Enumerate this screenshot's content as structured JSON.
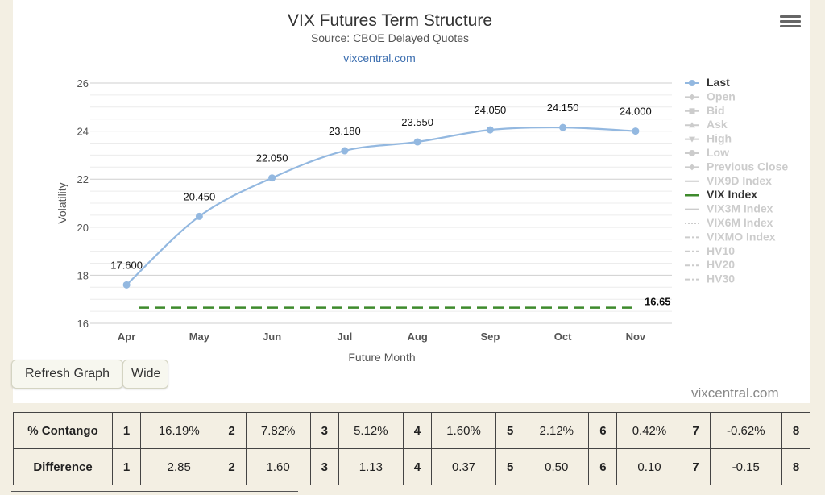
{
  "menu": {
    "icon": "hamburger-menu-icon"
  },
  "chart_data": {
    "type": "line",
    "title": "VIX Futures Term Structure",
    "subtitle": "Source: CBOE Delayed Quotes",
    "credit": "vixcentral.com",
    "xlabel": "Future Month",
    "ylabel": "Volatility",
    "categories": [
      "Apr",
      "May",
      "Jun",
      "Jul",
      "Aug",
      "Sep",
      "Oct",
      "Nov"
    ],
    "ylim": [
      16,
      26
    ],
    "yticks": [
      16,
      18,
      20,
      22,
      24,
      26
    ],
    "grid": true,
    "legend_position": "right",
    "series": [
      {
        "name": "Last",
        "values": [
          17.6,
          20.45,
          22.05,
          23.18,
          23.55,
          24.05,
          24.15,
          24.0
        ],
        "value_labels": [
          "17.600",
          "20.450",
          "22.050",
          "23.180",
          "23.550",
          "24.050",
          "24.150",
          "24.000"
        ],
        "color": "#93b8e0"
      },
      {
        "name": "VIX Index",
        "value": 16.65,
        "label": "16.65",
        "color": "#3e8a2c",
        "style": "dashed"
      }
    ],
    "legend": [
      {
        "name": "Last",
        "active": true,
        "symbol": "circle-line"
      },
      {
        "name": "Open",
        "active": false,
        "symbol": "diamond-line"
      },
      {
        "name": "Bid",
        "active": false,
        "symbol": "square-line"
      },
      {
        "name": "Ask",
        "active": false,
        "symbol": "triangle-line"
      },
      {
        "name": "High",
        "active": false,
        "symbol": "triangle-down-line"
      },
      {
        "name": "Low",
        "active": false,
        "symbol": "circle-line"
      },
      {
        "name": "Previous Close",
        "active": false,
        "symbol": "diamond-line"
      },
      {
        "name": "VIX9D Index",
        "active": false,
        "symbol": "line"
      },
      {
        "name": "VIX Index",
        "active": true,
        "symbol": "line-green"
      },
      {
        "name": "VIX3M Index",
        "active": false,
        "symbol": "line"
      },
      {
        "name": "VIX6M Index",
        "active": false,
        "symbol": "dotted"
      },
      {
        "name": "VIXMO Index",
        "active": false,
        "symbol": "dash-dot"
      },
      {
        "name": "HV10",
        "active": false,
        "symbol": "dash-dot"
      },
      {
        "name": "HV20",
        "active": false,
        "symbol": "dash-dot"
      },
      {
        "name": "HV30",
        "active": false,
        "symbol": "dash-dot"
      }
    ]
  },
  "buttons": {
    "refresh": "Refresh Graph",
    "wide": "Wide"
  },
  "footer_credit": "vixcentral.com",
  "table": {
    "rows": [
      {
        "label": "% Contango",
        "cells": [
          [
            "1",
            "16.19%"
          ],
          [
            "2",
            "7.82%"
          ],
          [
            "3",
            "5.12%"
          ],
          [
            "4",
            "1.60%"
          ],
          [
            "5",
            "2.12%"
          ],
          [
            "6",
            "0.42%"
          ],
          [
            "7",
            "-0.62%"
          ],
          [
            "8",
            ""
          ]
        ]
      },
      {
        "label": "Difference",
        "cells": [
          [
            "1",
            "2.85"
          ],
          [
            "2",
            "1.60"
          ],
          [
            "3",
            "1.13"
          ],
          [
            "4",
            "0.37"
          ],
          [
            "5",
            "0.50"
          ],
          [
            "6",
            "0.10"
          ],
          [
            "7",
            "-0.15"
          ],
          [
            "8",
            ""
          ]
        ]
      }
    ]
  }
}
